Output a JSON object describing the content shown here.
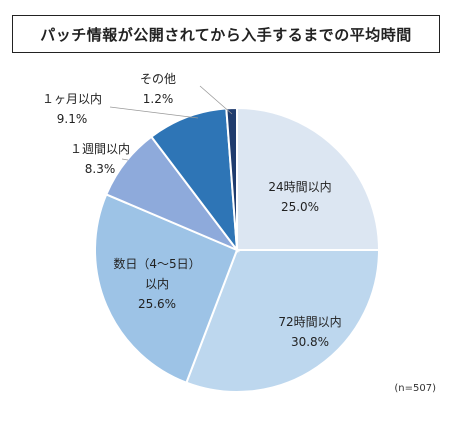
{
  "title": "パッチ情報が公開されてから入手するまでの平均時間",
  "note": "(n=507)",
  "chart_data": {
    "type": "pie",
    "title": "パッチ情報が公開されてから入手するまでの平均時間",
    "slices": [
      {
        "label": "24時間以内",
        "value": 25.0,
        "value_label": "25.0%",
        "color": "#dce6f2"
      },
      {
        "label": "72時間以内",
        "value": 30.8,
        "value_label": "30.8%",
        "color": "#bdd7ee"
      },
      {
        "label": "数日（4～5日）以内",
        "label_lines": [
          "数日（4～5日）",
          "以内"
        ],
        "value": 25.6,
        "value_label": "25.6%",
        "color": "#9dc3e6"
      },
      {
        "label": "１週間以内",
        "value": 8.3,
        "value_label": "8.3%",
        "color": "#8eaadb"
      },
      {
        "label": "１ヶ月以内",
        "value": 9.1,
        "value_label": "9.1%",
        "color": "#2e75b6"
      },
      {
        "label": "その他",
        "value": 1.2,
        "value_label": "1.2%",
        "color": "#1f3c6e"
      }
    ],
    "start_angle_deg": 0,
    "direction": "clockwise"
  }
}
